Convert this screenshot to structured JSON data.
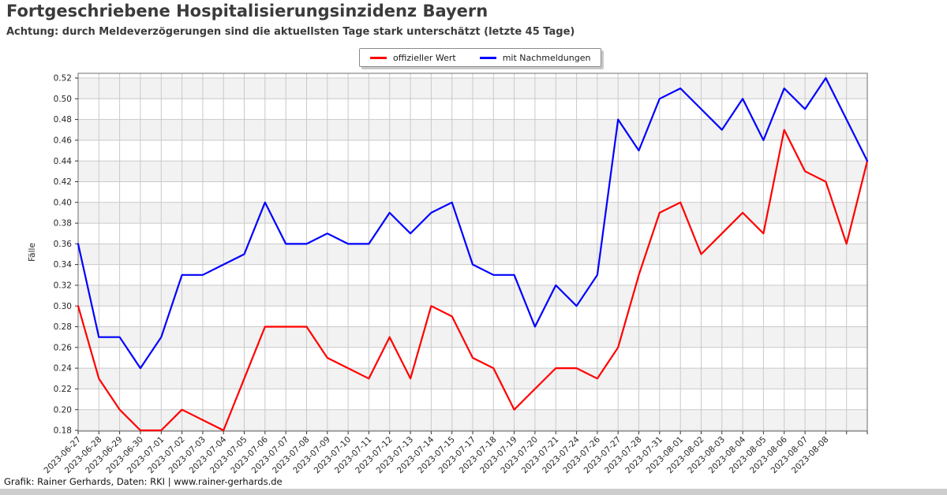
{
  "page": {
    "title": "Fortgeschriebene Hospitalisierungsinzidenz Bayern",
    "subtitle": "Achtung: durch Meldeverzögerungen sind die aktuellsten Tage stark unterschätzt (letzte 45 Tage)",
    "footer": "Grafik: Rainer Gerhards, Daten: RKI | www.rainer-gerhards.de"
  },
  "legend": {
    "items": [
      {
        "label": "offizieller Wert",
        "color": "#ff0000"
      },
      {
        "label": "mit Nachmeldungen",
        "color": "#0000ff"
      }
    ]
  },
  "chart_data": {
    "type": "line",
    "title": "Fortgeschriebene Hospitalisierungsinzidenz Bayern",
    "subtitle": "Achtung: durch Meldeverzögerungen sind die aktuellsten Tage stark unterschätzt (letzte 45 Tage)",
    "xlabel": "",
    "ylabel": "Fälle",
    "ylim": [
      0.18,
      0.52
    ],
    "ytick_step": 0.02,
    "yticks": [
      0.18,
      0.2,
      0.22,
      0.24,
      0.26,
      0.28,
      0.3,
      0.32,
      0.34,
      0.36,
      0.38,
      0.4,
      0.42,
      0.44,
      0.46,
      0.48,
      0.5,
      0.52
    ],
    "grid": true,
    "legend_position": "top-center",
    "categories": [
      "2023-06-27",
      "2023-06-28",
      "2023-06-29",
      "2023-06-30",
      "2023-07-01",
      "2023-07-02",
      "2023-07-03",
      "2023-07-04",
      "2023-07-05",
      "2023-07-06",
      "2023-07-07",
      "2023-07-08",
      "2023-07-09",
      "2023-07-10",
      "2023-07-11",
      "2023-07-12",
      "2023-07-13",
      "2023-07-14",
      "2023-07-15",
      "2023-07-17",
      "2023-07-18",
      "2023-07-19",
      "2023-07-20",
      "2023-07-21",
      "2023-07-24",
      "2023-07-26",
      "2023-07-27",
      "2023-07-28",
      "2023-07-31",
      "2023-08-01",
      "2023-08-02",
      "2023-08-03",
      "2023-08-04",
      "2023-08-05",
      "2023-08-06",
      "2023-08-07",
      "2023-08-08",
      "",
      ""
    ],
    "series": [
      {
        "name": "offizieller Wert",
        "color": "#ff0000",
        "values": [
          0.3,
          0.23,
          0.2,
          0.18,
          0.18,
          0.2,
          0.19,
          0.18,
          0.23,
          0.28,
          0.28,
          0.28,
          0.25,
          0.24,
          0.23,
          0.27,
          0.23,
          0.3,
          0.29,
          0.25,
          0.24,
          0.2,
          0.22,
          0.24,
          0.24,
          0.23,
          0.26,
          0.33,
          0.39,
          0.4,
          0.35,
          0.37,
          0.39,
          0.37,
          0.47,
          0.43,
          0.42,
          0.36,
          0.44
        ]
      },
      {
        "name": "mit Nachmeldungen",
        "color": "#0000ff",
        "values": [
          0.36,
          0.27,
          0.27,
          0.24,
          0.27,
          0.33,
          0.33,
          0.34,
          0.35,
          0.4,
          0.36,
          0.36,
          0.37,
          0.36,
          0.36,
          0.39,
          0.37,
          0.39,
          0.4,
          0.34,
          0.33,
          0.33,
          0.28,
          0.32,
          0.3,
          0.33,
          0.48,
          0.45,
          0.5,
          0.51,
          0.49,
          0.47,
          0.5,
          0.46,
          0.51,
          0.49,
          0.52,
          0.48,
          0.44
        ]
      }
    ],
    "colors": {
      "band": "#f2f2f2",
      "grid": "#c9c9c9",
      "spine": "#6e6e6e",
      "tick": "#333333",
      "tick_label": "#262626"
    }
  }
}
